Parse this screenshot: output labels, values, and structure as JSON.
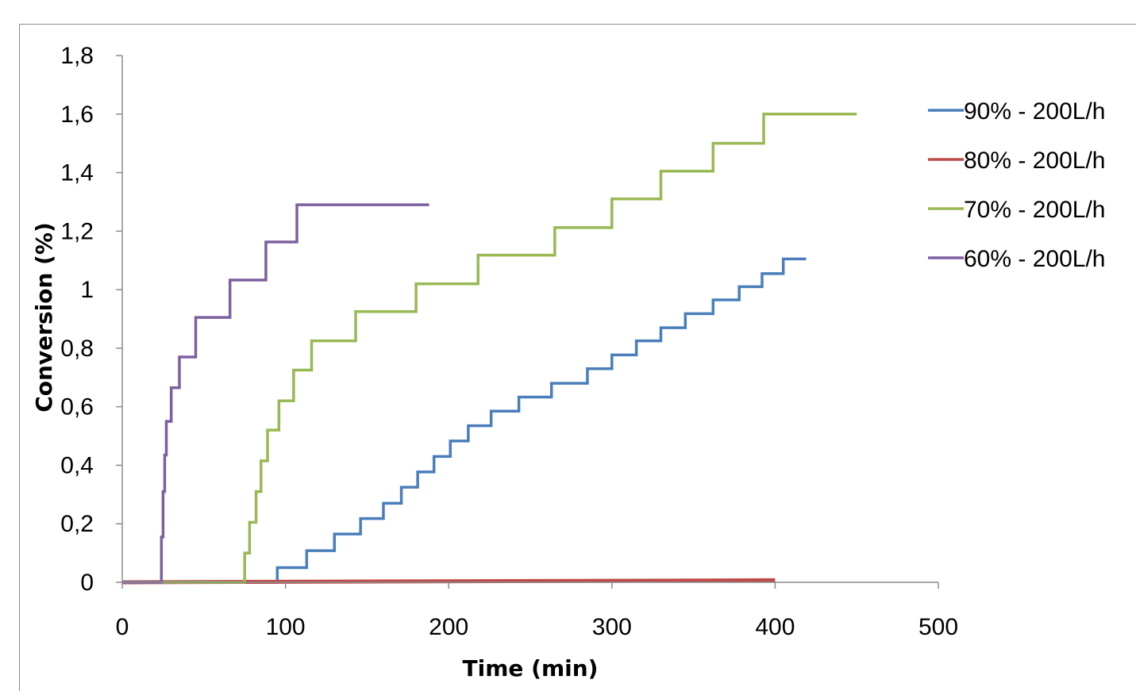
{
  "chart_data": {
    "type": "line",
    "title": "",
    "xlabel": "Time (min)",
    "ylabel": "Conversion (%)",
    "xlim": [
      0,
      500
    ],
    "ylim": [
      0,
      1.8
    ],
    "x_ticks": [
      "0",
      "100",
      "200",
      "300",
      "400",
      "500"
    ],
    "y_ticks": [
      "0",
      "0,2",
      "0,4",
      "0,6",
      "0,8",
      "1",
      "1,2",
      "1,4",
      "1,6",
      "1,8"
    ],
    "grid": false,
    "legend_position": "right",
    "series": [
      {
        "name": "90% - 200L/h",
        "color": "#4a7ebb",
        "step": true,
        "x": [
          0,
          95,
          113,
          130,
          146,
          160,
          171,
          181,
          191,
          201,
          212,
          226,
          243,
          263,
          285,
          300,
          315,
          330,
          345,
          362,
          378,
          392,
          405,
          419
        ],
        "y": [
          0,
          0.05,
          0.108,
          0.165,
          0.218,
          0.27,
          0.325,
          0.377,
          0.43,
          0.483,
          0.535,
          0.585,
          0.633,
          0.68,
          0.73,
          0.777,
          0.825,
          0.87,
          0.918,
          0.965,
          1.01,
          1.055,
          1.105,
          1.105
        ]
      },
      {
        "name": "80% - 200L/h",
        "color": "#be4b48",
        "step": false,
        "x": [
          0,
          400
        ],
        "y": [
          0,
          0.007
        ]
      },
      {
        "name": "70% - 200L/h",
        "color": "#98b954",
        "step": true,
        "x": [
          0,
          75,
          78,
          82,
          85,
          89,
          96,
          105,
          116,
          143,
          180,
          218,
          265,
          300,
          330,
          362,
          393,
          422,
          450
        ],
        "y": [
          0,
          0.1,
          0.205,
          0.31,
          0.415,
          0.52,
          0.62,
          0.725,
          0.825,
          0.925,
          1.02,
          1.118,
          1.212,
          1.31,
          1.405,
          1.5,
          1.6,
          1.6,
          1.6
        ]
      },
      {
        "name": "60% - 200L/h",
        "color": "#7d60a0",
        "step": true,
        "x": [
          0,
          24,
          25,
          26,
          27,
          30,
          35,
          45,
          66,
          88,
          107,
          124,
          188
        ],
        "y": [
          0,
          0.155,
          0.31,
          0.435,
          0.55,
          0.665,
          0.77,
          0.905,
          1.033,
          1.163,
          1.29,
          1.29,
          1.29
        ]
      }
    ]
  }
}
